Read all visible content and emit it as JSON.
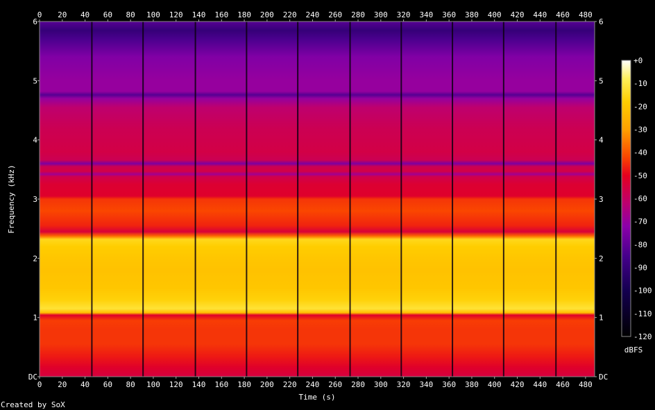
{
  "chart_data": {
    "type": "heatmap",
    "title": "",
    "xlabel": "Time (s)",
    "ylabel": "Frequency (kHz)",
    "xlim": [
      0,
      488
    ],
    "ylim": [
      0,
      6
    ],
    "x_ticks": [
      "0",
      "20",
      "40",
      "60",
      "80",
      "100",
      "120",
      "140",
      "160",
      "180",
      "200",
      "220",
      "240",
      "260",
      "280",
      "300",
      "320",
      "340",
      "360",
      "380",
      "400",
      "420",
      "440",
      "460",
      "480"
    ],
    "y_ticks": [
      "DC",
      "1",
      "2",
      "3",
      "4",
      "5",
      "6"
    ],
    "colorbar": {
      "label": "dBFS",
      "ticks": [
        "+0",
        "-10",
        "-20",
        "-30",
        "-40",
        "-50",
        "-60",
        "-70",
        "-80",
        "-90",
        "-100",
        "-110",
        "-120"
      ],
      "range": [
        -120,
        0
      ]
    },
    "segment_boundaries_s": [
      46,
      91,
      137,
      182,
      227,
      273,
      318,
      363,
      408,
      454
    ],
    "frequency_profile_dBFS": [
      {
        "khz": 0.0,
        "db": -55
      },
      {
        "khz": 0.15,
        "db": -52
      },
      {
        "khz": 0.35,
        "db": -47
      },
      {
        "khz": 0.55,
        "db": -44
      },
      {
        "khz": 0.8,
        "db": -44
      },
      {
        "khz": 0.95,
        "db": -43
      },
      {
        "khz": 1.04,
        "db": -52
      },
      {
        "khz": 1.08,
        "db": -22
      },
      {
        "khz": 1.15,
        "db": -12
      },
      {
        "khz": 1.3,
        "db": -17
      },
      {
        "khz": 1.5,
        "db": -20
      },
      {
        "khz": 1.8,
        "db": -21
      },
      {
        "khz": 2.0,
        "db": -20
      },
      {
        "khz": 2.2,
        "db": -18
      },
      {
        "khz": 2.32,
        "db": -15
      },
      {
        "khz": 2.38,
        "db": -38
      },
      {
        "khz": 2.45,
        "db": -54
      },
      {
        "khz": 2.55,
        "db": -46
      },
      {
        "khz": 2.8,
        "db": -42
      },
      {
        "khz": 3.0,
        "db": -44
      },
      {
        "khz": 3.05,
        "db": -52
      },
      {
        "khz": 3.25,
        "db": -53
      },
      {
        "khz": 3.38,
        "db": -57
      },
      {
        "khz": 3.42,
        "db": -68
      },
      {
        "khz": 3.47,
        "db": -56
      },
      {
        "khz": 3.55,
        "db": -58
      },
      {
        "khz": 3.6,
        "db": -75
      },
      {
        "khz": 3.66,
        "db": -58
      },
      {
        "khz": 3.8,
        "db": -56
      },
      {
        "khz": 4.2,
        "db": -58
      },
      {
        "khz": 4.55,
        "db": -62
      },
      {
        "khz": 4.7,
        "db": -70
      },
      {
        "khz": 4.76,
        "db": -82
      },
      {
        "khz": 4.82,
        "db": -70
      },
      {
        "khz": 5.0,
        "db": -70
      },
      {
        "khz": 5.4,
        "db": -74
      },
      {
        "khz": 5.7,
        "db": -84
      },
      {
        "khz": 5.85,
        "db": -90
      },
      {
        "khz": 6.0,
        "db": -82
      }
    ]
  },
  "footer": {
    "credit": "Created by SoX"
  }
}
